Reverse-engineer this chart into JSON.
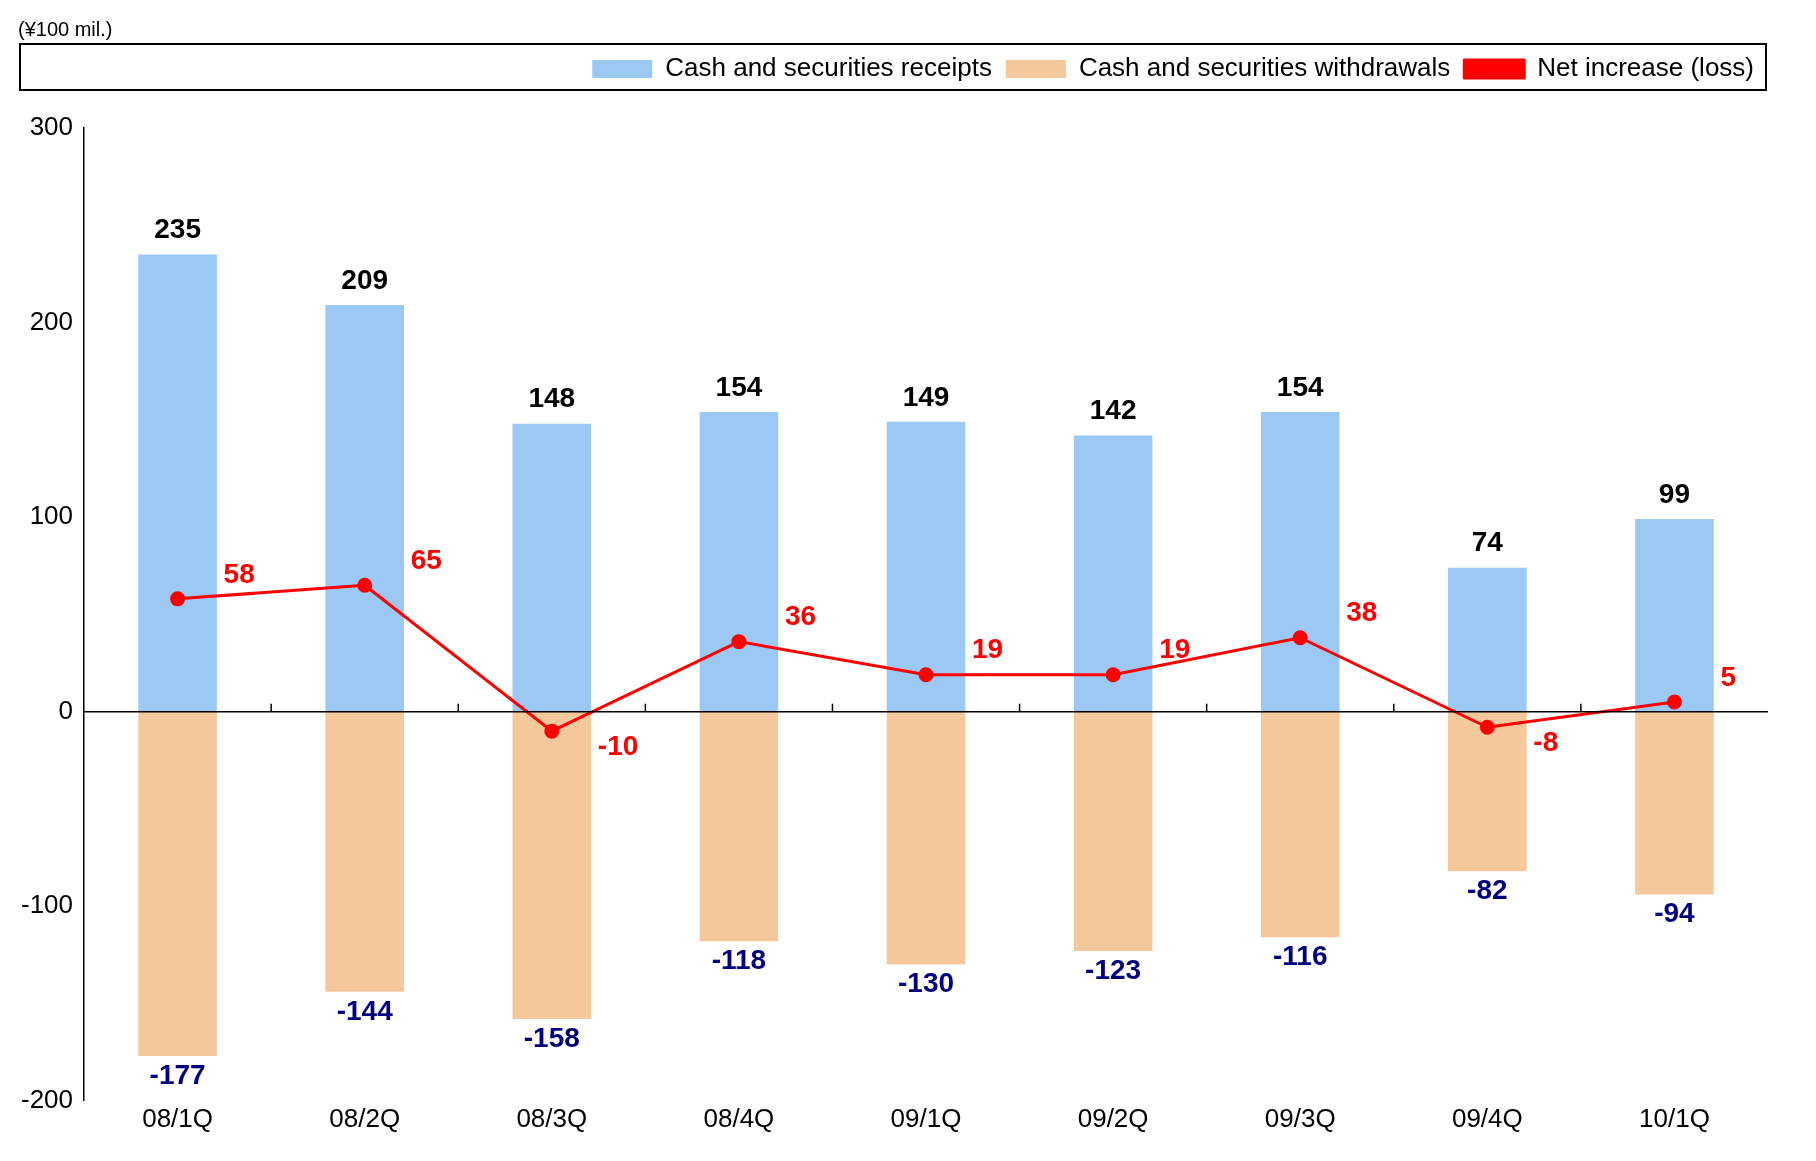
{
  "chart_data": {
    "type": "bar",
    "ylabel": "(¥100 mil.)",
    "categories": [
      "08/1Q",
      "08/2Q",
      "08/3Q",
      "08/4Q",
      "09/1Q",
      "09/2Q",
      "09/3Q",
      "09/4Q",
      "10/1Q"
    ],
    "series": [
      {
        "name": "Cash and securities receipts",
        "color": "#9cc8f4",
        "values": [
          235,
          209,
          148,
          154,
          149,
          142,
          154,
          74,
          99
        ]
      },
      {
        "name": "Cash and securities withdrawals",
        "color": "#f4c89a",
        "values": [
          -177,
          -144,
          -158,
          -118,
          -130,
          -123,
          -116,
          -82,
          -94
        ]
      },
      {
        "name": "Net increase (loss)",
        "type": "line",
        "color": "#ff0000",
        "values": [
          58,
          65,
          -10,
          36,
          19,
          19,
          38,
          -8,
          5
        ]
      }
    ],
    "ref_lines": [
      {
        "axis": "y",
        "value": 0,
        "color": "#000000"
      }
    ],
    "stacked": true,
    "ylim": [
      -200,
      300
    ],
    "yticks": [
      -200,
      -100,
      0,
      100,
      200,
      300
    ],
    "grid": false,
    "legend": "top right",
    "marker": "circle",
    "line_style": "solid",
    "data_labels": true
  }
}
